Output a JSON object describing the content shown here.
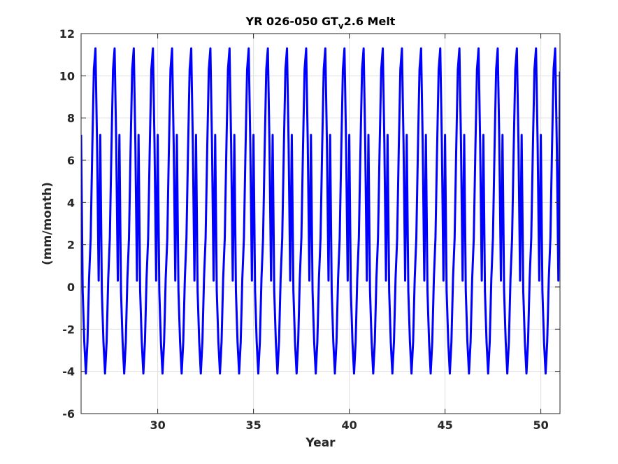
{
  "chart_data": {
    "type": "line",
    "title": "YR 026-050 GT",
    "title_subscript": "v",
    "title_suffix": "2.6 Melt",
    "xlabel": "Year",
    "ylabel": "(mm/month)",
    "xlim": [
      26,
      51
    ],
    "ylim": [
      -6,
      12
    ],
    "xticks": [
      30,
      35,
      40,
      45,
      50
    ],
    "yticks": [
      -6,
      -4,
      -2,
      0,
      2,
      4,
      6,
      8,
      10,
      12
    ],
    "grid": true,
    "series_color": "#0000ff",
    "series": [
      {
        "cycle_years": [
          26,
          27,
          28,
          29,
          30,
          31,
          32,
          33,
          34,
          35,
          36,
          37,
          38,
          39,
          40,
          41,
          42,
          43,
          44,
          45,
          46,
          47,
          48,
          49,
          50
        ],
        "monthly_pattern_offsets": [
          0.0,
          0.0833,
          0.1667,
          0.25,
          0.3333,
          0.4167,
          0.5,
          0.5833,
          0.6667,
          0.75,
          0.8333,
          0.9167
        ],
        "monthly_pattern_values": [
          7.2,
          -0.2,
          -2.6,
          -4.1,
          -2.6,
          0.4,
          2.3,
          6.5,
          10.3,
          11.3,
          6.8,
          0.3
        ],
        "end_value": 10.2
      }
    ]
  }
}
